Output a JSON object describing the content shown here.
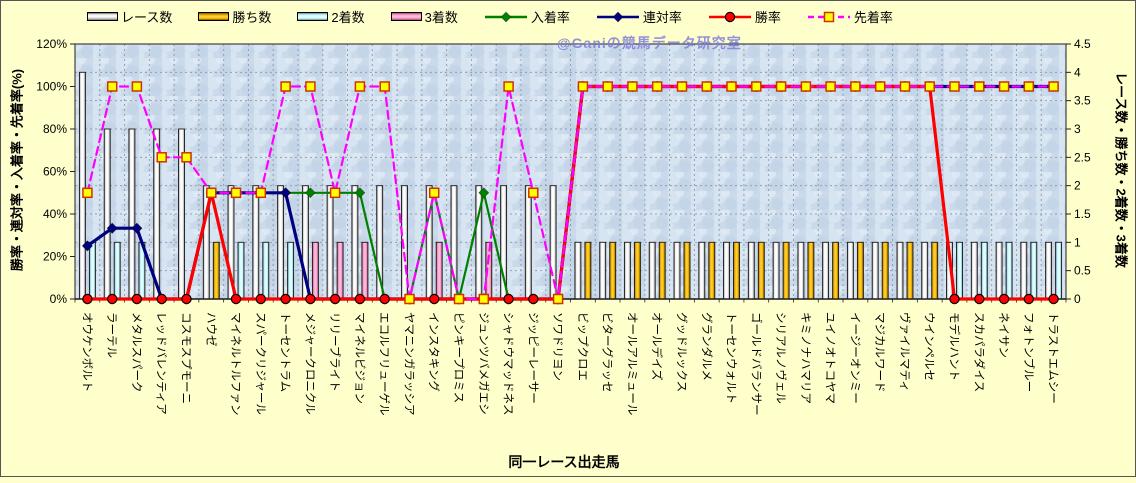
{
  "watermark": {
    "text": "@Ganiの競馬データ研究室",
    "color": "#7F7FD6"
  },
  "chart_data": {
    "type": "combo (bar + line)",
    "x_axis_title": "同一レース出走馬",
    "left_axis": {
      "label": "勝率・連対率・入着率・先着率(%)",
      "min": 0,
      "max": 120,
      "tick_step": 20,
      "tick_suffix": "%"
    },
    "right_axis": {
      "label": "レース数・勝ち数・2着数・3着数",
      "min": 0,
      "max": 4.5,
      "tick_step": 0.5
    },
    "legend_position": "top",
    "grid": true,
    "colors": {
      "page_bg": "#FFFFCC",
      "plot_bg": "#CBDAEA",
      "grid": "#8C99AB"
    },
    "categories": [
      "オウケンボルト",
      "ラーテル",
      "メタルスパーク",
      "レッドバレンティア",
      "コスモスプモーニ",
      "ハウゼ",
      "マイネルトルファン",
      "スパークリジャール",
      "トーセントラム",
      "メジャークロニクル",
      "リリーブライト",
      "マイネルビジョン",
      "エコルフリューゲル",
      "ヤマニンガラッシア",
      "インスタキング",
      "ピンキープロミス",
      "ジュンツバメガエシ",
      "シャドウマッドネス",
      "ジッピーレーサー",
      "ソワドリヨン",
      "ビップクロエ",
      "ビターグラッセ",
      "オールアルミュール",
      "オールデイズ",
      "グッドルックス",
      "グランダルメ",
      "トーセンウォルト",
      "ゴールドバランサー",
      "シリアルノヴェル",
      "キミノナハマリア",
      "ユイノオトコヤマ",
      "イージーオンミー",
      "マジカルワード",
      "ヴァイルマティ",
      "ウインペルセ",
      "モデルハント",
      "スカパラダイス",
      "ネイサン",
      "フォトンブルー",
      "トラストエムシー"
    ],
    "bar_series": [
      {
        "key": "races",
        "name": "レース数",
        "color": "#FFFFFF",
        "values": [
          4,
          3,
          3,
          3,
          3,
          2,
          2,
          2,
          2,
          2,
          2,
          2,
          2,
          2,
          2,
          2,
          2,
          2,
          2,
          2,
          1,
          1,
          1,
          1,
          1,
          1,
          1,
          1,
          1,
          1,
          1,
          1,
          1,
          1,
          1,
          1,
          1,
          1,
          1,
          1
        ]
      },
      {
        "key": "wins",
        "name": "勝ち数",
        "color": "#FFC000",
        "values": [
          0,
          0,
          0,
          0,
          0,
          1,
          0,
          0,
          0,
          0,
          0,
          0,
          0,
          0,
          0,
          0,
          0,
          0,
          0,
          0,
          1,
          1,
          1,
          1,
          1,
          1,
          1,
          1,
          1,
          1,
          1,
          1,
          1,
          1,
          1,
          0,
          0,
          0,
          0,
          0
        ]
      },
      {
        "key": "seconds",
        "name": "2着数",
        "color": "#CCFFFF",
        "values": [
          1,
          1,
          1,
          0,
          0,
          0,
          1,
          1,
          1,
          0,
          0,
          0,
          0,
          0,
          0,
          0,
          0,
          0,
          0,
          0,
          0,
          0,
          0,
          0,
          0,
          0,
          0,
          0,
          0,
          0,
          0,
          0,
          0,
          0,
          0,
          1,
          1,
          1,
          1,
          1
        ]
      },
      {
        "key": "thirds",
        "name": "3着数",
        "color": "#FF99CC",
        "values": [
          0,
          0,
          0,
          0,
          0,
          0,
          0,
          0,
          0,
          1,
          1,
          1,
          0,
          0,
          1,
          0,
          1,
          0,
          0,
          0,
          0,
          0,
          0,
          0,
          0,
          0,
          0,
          0,
          0,
          0,
          0,
          0,
          0,
          0,
          0,
          0,
          0,
          0,
          0,
          0
        ]
      }
    ],
    "line_series": [
      {
        "key": "place-rate",
        "name": "入着率",
        "color": "#008000",
        "marker": "diamond",
        "marker_fill": "#008000",
        "dashed": false,
        "values": [
          25,
          33.3,
          33.3,
          0,
          0,
          50,
          50,
          50,
          50,
          50,
          50,
          50,
          0,
          0,
          50,
          0,
          50,
          0,
          0,
          0,
          100,
          100,
          100,
          100,
          100,
          100,
          100,
          100,
          100,
          100,
          100,
          100,
          100,
          100,
          100,
          100,
          100,
          100,
          100,
          100
        ]
      },
      {
        "key": "quinella-rate",
        "name": "連対率",
        "color": "#000080",
        "marker": "diamond",
        "marker_fill": "#000080",
        "dashed": false,
        "values": [
          25,
          33.3,
          33.3,
          0,
          0,
          50,
          50,
          50,
          50,
          0,
          0,
          0,
          0,
          0,
          0,
          0,
          0,
          0,
          0,
          0,
          100,
          100,
          100,
          100,
          100,
          100,
          100,
          100,
          100,
          100,
          100,
          100,
          100,
          100,
          100,
          100,
          100,
          100,
          100,
          100
        ]
      },
      {
        "key": "win-rate",
        "name": "勝率",
        "color": "#FF0000",
        "marker": "circle",
        "marker_fill": "#FF0000",
        "marker_stroke": "#000000",
        "dashed": false,
        "values": [
          0,
          0,
          0,
          0,
          0,
          50,
          0,
          0,
          0,
          0,
          0,
          0,
          0,
          0,
          0,
          0,
          0,
          0,
          0,
          0,
          100,
          100,
          100,
          100,
          100,
          100,
          100,
          100,
          100,
          100,
          100,
          100,
          100,
          100,
          100,
          0,
          0,
          0,
          0,
          0
        ]
      },
      {
        "key": "ahead-rate",
        "name": "先着率",
        "color": "#FF00FF",
        "marker": "square",
        "marker_fill": "#FFFF00",
        "marker_stroke": "#CC3300",
        "dashed": true,
        "values": [
          50,
          100,
          100,
          66.7,
          66.7,
          50,
          50,
          50,
          100,
          100,
          50,
          100,
          100,
          0,
          50,
          0,
          0,
          100,
          50,
          0,
          100,
          100,
          100,
          100,
          100,
          100,
          100,
          100,
          100,
          100,
          100,
          100,
          100,
          100,
          100,
          100,
          100,
          100,
          100,
          100
        ]
      }
    ]
  }
}
